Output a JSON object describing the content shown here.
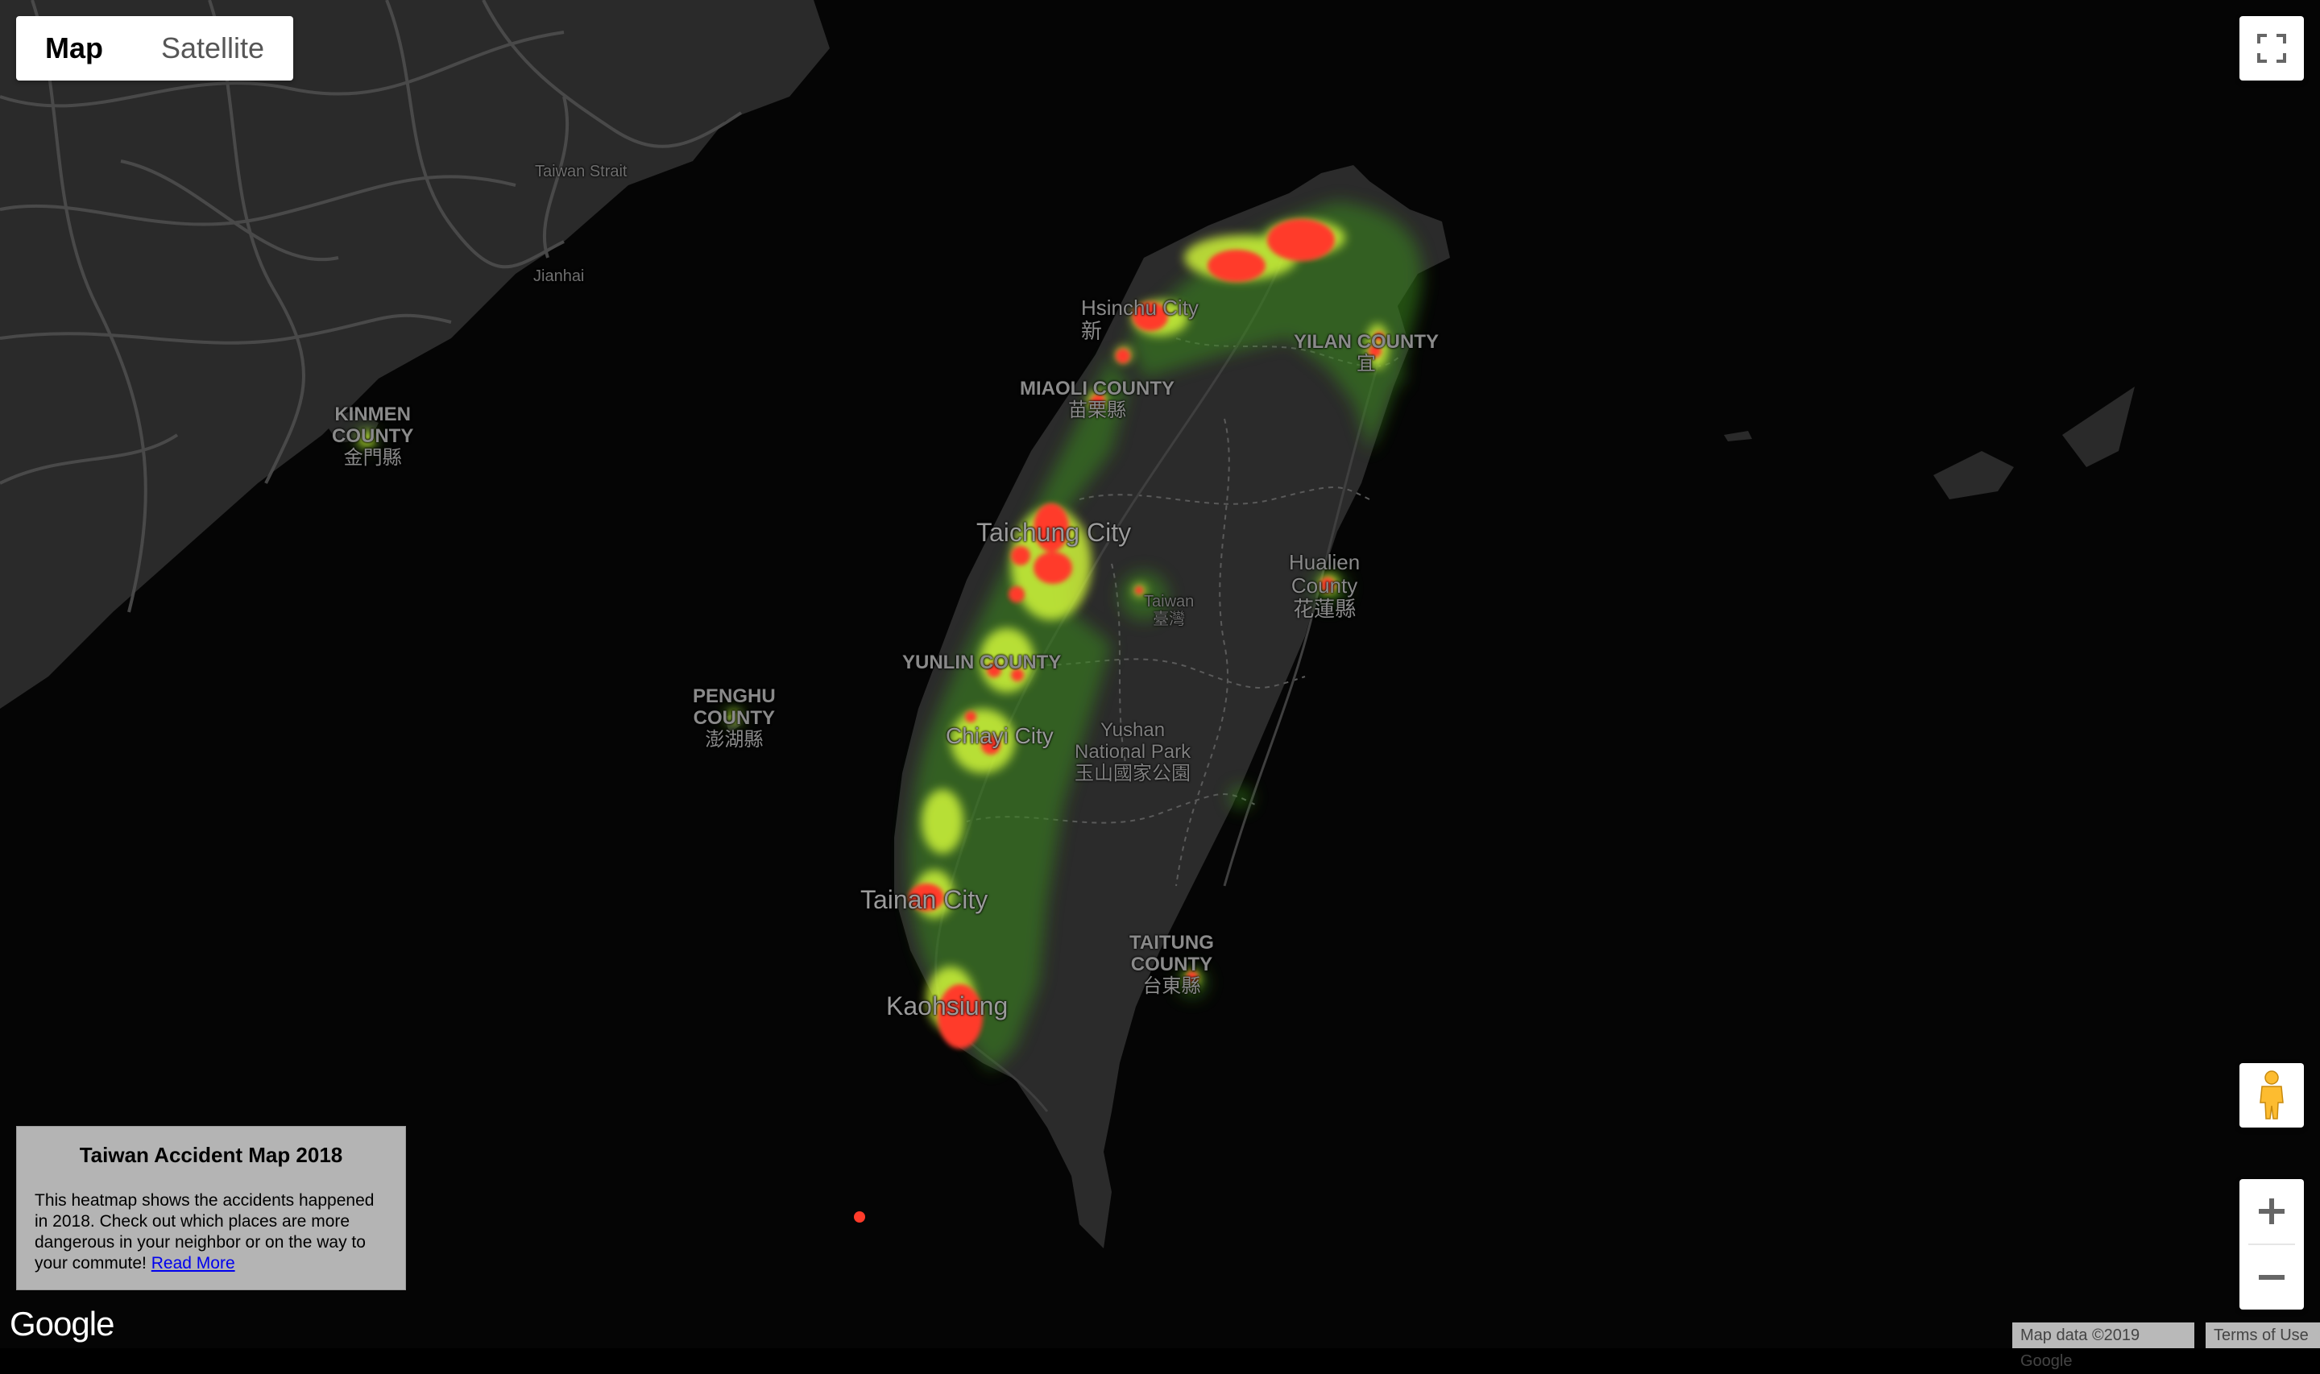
{
  "map_type": {
    "options": [
      "Map",
      "Satellite"
    ],
    "selected": "Map"
  },
  "labels": {
    "kinmen": {
      "en1": "KINMEN",
      "en2": "COUNTY",
      "zh": "金門縣"
    },
    "penghu": {
      "en1": "PENGHU",
      "en2": "COUNTY",
      "zh": "澎湖縣"
    },
    "hsinchu": {
      "en": "Hsinchu City",
      "zh": "新"
    },
    "miaoli": {
      "en": "MIAOLI COUNTY",
      "zh": "苗栗縣"
    },
    "yilan": {
      "en": "YILAN COUNTY",
      "zh": "宜"
    },
    "taichung": {
      "en": "Taichung City"
    },
    "hualien": {
      "en1": "Hualien",
      "en2": "County",
      "zh": "花蓮縣"
    },
    "taiwan": {
      "en": "Taiwan",
      "zh": "臺灣"
    },
    "yunlin": {
      "en": "YUNLIN COUNTY"
    },
    "chiayi": {
      "en": "Chiayi City"
    },
    "yushan": {
      "en1": "Yushan",
      "en2": "National Park",
      "zh": "玉山國家公園"
    },
    "tainan": {
      "en": "Tainan City"
    },
    "taitung": {
      "en1": "TAITUNG",
      "en2": "COUNTY",
      "zh": "台東縣"
    },
    "kaohsiung": {
      "en": "Kaohsiung"
    },
    "strait": {
      "en": "Taiwan Strait"
    },
    "xianhai": {
      "en": "Jianhai"
    }
  },
  "info": {
    "title": "Taiwan Accident Map 2018",
    "body": "This heatmap shows the accidents happened in 2018. Check out which places are more dangerous in your neighbor or on the way to your commute!",
    "link": "Read More"
  },
  "controls": {
    "fullscreen": "fullscreen-icon",
    "pegman": "pegman-icon",
    "zoom_in": "plus-icon",
    "zoom_out": "minus-icon"
  },
  "attribution": {
    "map_data": "Map data ©2019 Google",
    "terms": "Terms of Use",
    "logo": "Google"
  },
  "colors": {
    "land": "#2b2b2b",
    "water": "#000000",
    "road": "#4a4a4a",
    "heat_low": "#3a8a1f",
    "heat_mid": "#d9ff3a",
    "heat_high": "#ff3b2a"
  }
}
